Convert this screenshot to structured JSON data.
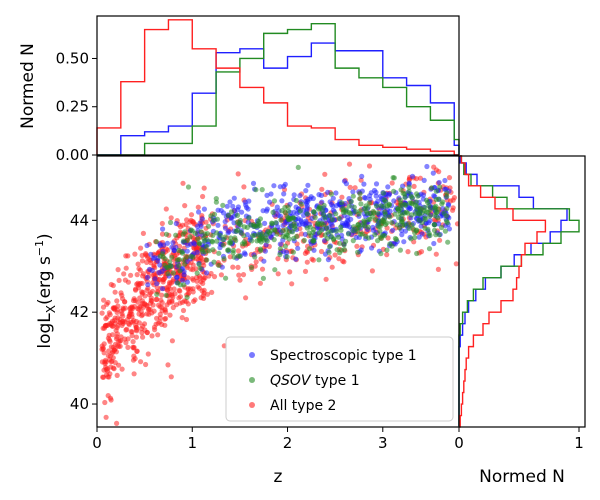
{
  "chart_data": {
    "type": "scatter",
    "layout": "scatter with marginal histograms",
    "scatter": {
      "xlabel": "z",
      "ylabel_main": "logL",
      "ylabel_sub": "X",
      "ylabel_units": "(erg s",
      "ylabel_exp": "−1",
      "ylabel_close": ")",
      "xlim": [
        0,
        3.8
      ],
      "ylim": [
        39.5,
        45.4
      ],
      "xticks": [
        0,
        1,
        2,
        3
      ],
      "xtick_labels": [
        "0",
        "1",
        "2",
        "3"
      ],
      "yticks": [
        40,
        42,
        44
      ],
      "ytick_labels": [
        "40",
        "42",
        "44"
      ],
      "series": [
        {
          "name": "All type 2",
          "label": "All type 2",
          "color": "#ff2020",
          "n_points": 900,
          "z_range": [
            0.05,
            3.8
          ],
          "logL_trend": [
            [
              0.05,
              41.0
            ],
            [
              0.3,
              41.9
            ],
            [
              0.6,
              42.6
            ],
            [
              0.9,
              43.1
            ],
            [
              1.5,
              43.5
            ],
            [
              2.2,
              43.8
            ],
            [
              3.0,
              44.0
            ],
            [
              3.8,
              44.2
            ]
          ],
          "scatter_sigma": 0.55
        },
        {
          "name": "Spectroscopic type 1",
          "label": "Spectroscopic type 1",
          "color": "#1f1fff",
          "n_points": 550,
          "z_range": [
            0.5,
            3.7
          ],
          "logL_trend": [
            [
              0.5,
              42.9
            ],
            [
              1.0,
              43.5
            ],
            [
              1.5,
              43.9
            ],
            [
              2.0,
              44.0
            ],
            [
              2.6,
              44.1
            ],
            [
              3.7,
              44.3
            ]
          ],
          "scatter_sigma": 0.38
        },
        {
          "name": "QSOV type 1",
          "label_italic": "QSOV",
          "label_rest": " type 1",
          "color": "#228b22",
          "n_points": 450,
          "z_range": [
            0.6,
            3.7
          ],
          "logL_trend": [
            [
              0.6,
              42.9
            ],
            [
              1.0,
              43.4
            ],
            [
              1.5,
              43.7
            ],
            [
              2.0,
              43.8
            ],
            [
              2.6,
              44.0
            ],
            [
              3.7,
              44.2
            ]
          ],
          "scatter_sigma": 0.35
        }
      ],
      "legend_location": "lower-right"
    },
    "top_histogram": {
      "ylabel": "Normed N",
      "ylim": [
        0,
        0.72
      ],
      "yticks": [
        0.0,
        0.25,
        0.5
      ],
      "ytick_labels": [
        "0.00",
        "0.25",
        "0.50"
      ],
      "bin_width": 0.25,
      "bin_start": 0.0,
      "series": [
        {
          "name": "Spectroscopic type 1",
          "color": "#1f1fff",
          "values": [
            0,
            0.1,
            0.12,
            0.15,
            0.32,
            0.53,
            0.55,
            0.45,
            0.51,
            0.58,
            0.54,
            0.54,
            0.4,
            0.36,
            0.27,
            0.05
          ]
        },
        {
          "name": "QSOV type 1",
          "color": "#228b22",
          "values": [
            0,
            0,
            0.06,
            0.06,
            0.15,
            0.43,
            0.5,
            0.63,
            0.65,
            0.68,
            0.45,
            0.4,
            0.35,
            0.25,
            0.18,
            0.08
          ]
        },
        {
          "name": "All type 2",
          "color": "#ff2020",
          "values": [
            0.14,
            0.38,
            0.65,
            0.7,
            0.55,
            0.45,
            0.35,
            0.27,
            0.15,
            0.14,
            0.08,
            0.05,
            0.04,
            0.03,
            0.02,
            0.0
          ]
        }
      ]
    },
    "right_histogram": {
      "xlabel": "Normed N",
      "xlim": [
        0,
        1.05
      ],
      "xticks": [
        0,
        1
      ],
      "xtick_labels": [
        "0",
        "1"
      ],
      "bin_width": 0.25,
      "bin_start": 39.5,
      "series": [
        {
          "name": "Spectroscopic type 1",
          "color": "#1f1fff",
          "values": [
            0,
            0,
            0,
            0,
            0,
            0,
            0,
            0.01,
            0.03,
            0.05,
            0.08,
            0.14,
            0.22,
            0.35,
            0.46,
            0.6,
            0.76,
            0.85,
            0.9,
            0.62,
            0.5,
            0.15,
            0.06,
            0.01
          ]
        },
        {
          "name": "QSOV type 1",
          "color": "#228b22",
          "values": [
            0,
            0,
            0,
            0,
            0,
            0,
            0,
            0,
            0.01,
            0.03,
            0.07,
            0.12,
            0.2,
            0.35,
            0.52,
            0.7,
            0.85,
            1.0,
            0.92,
            0.4,
            0.28,
            0.1,
            0.04,
            0.02
          ]
        },
        {
          "name": "All type 2",
          "color": "#ff2020",
          "values": [
            0.01,
            0.02,
            0.03,
            0.04,
            0.05,
            0.06,
            0.08,
            0.12,
            0.2,
            0.25,
            0.35,
            0.45,
            0.48,
            0.5,
            0.52,
            0.55,
            0.65,
            0.72,
            0.45,
            0.3,
            0.18,
            0.08,
            0.05,
            0.02
          ]
        }
      ]
    }
  }
}
